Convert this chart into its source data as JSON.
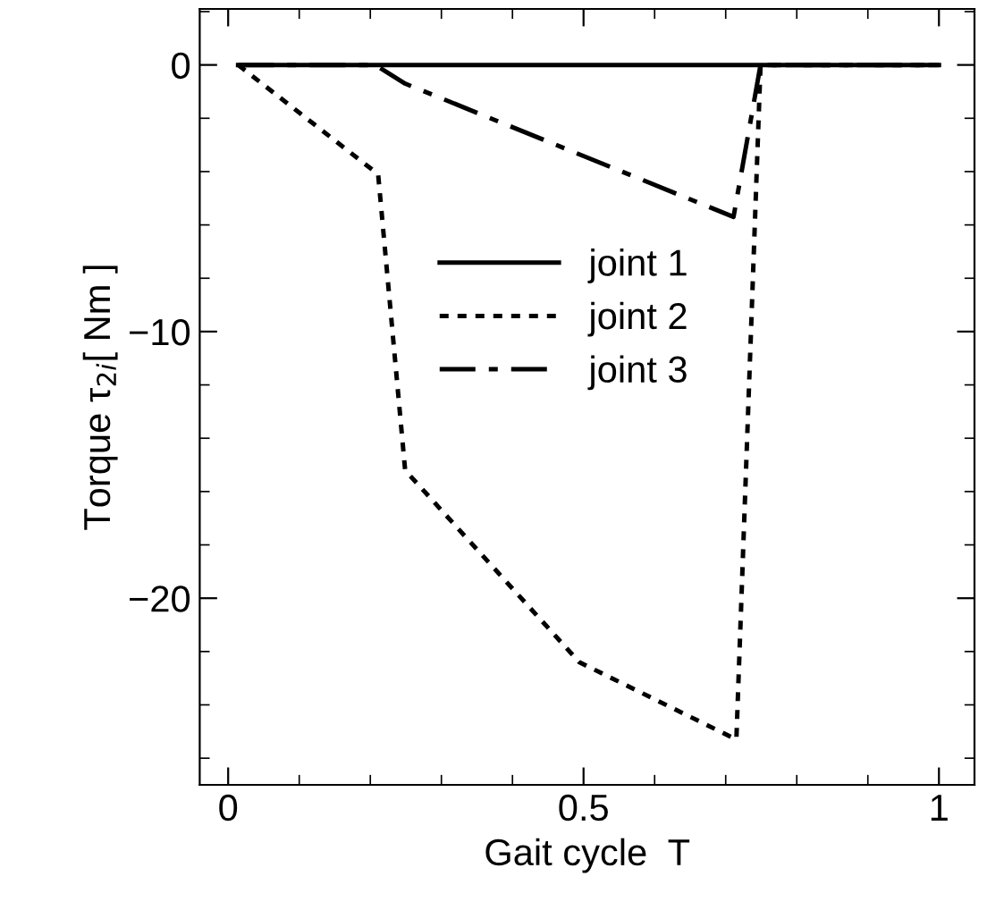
{
  "chart_data": {
    "type": "line",
    "xlabel": "Gait cycle  T",
    "ylabel": "Torque τ$_{2i}$[ Nm ]",
    "series": [
      {
        "name": "joint 1",
        "color": "#000000",
        "line_style": "solid",
        "x": [
          0.014,
          1.0
        ],
        "values": [
          0,
          0
        ]
      },
      {
        "name": "joint 2",
        "color": "#000000",
        "line_style": "dotted",
        "x": [
          0.014,
          0.211,
          0.249,
          0.494,
          0.715,
          0.749,
          1.0
        ],
        "values": [
          0,
          -4.1,
          -15.2,
          -22.4,
          -25.3,
          0,
          0
        ]
      },
      {
        "name": "joint 3",
        "color": "#000000",
        "line_style": "dashdot",
        "x": [
          0.014,
          0.207,
          0.249,
          0.711,
          0.749,
          1.0
        ],
        "values": [
          0,
          0,
          -0.7,
          -5.7,
          0,
          0
        ]
      }
    ],
    "xlim": [
      -0.04,
      1.05
    ],
    "ylim": [
      -27.0,
      2.1
    ],
    "xticks": [
      0,
      0.5,
      1
    ],
    "yticks": [
      0,
      {
        "value": -10,
        "label": "−10"
      },
      {
        "value": -20,
        "label": "−20"
      }
    ],
    "grid": false,
    "legend": "center",
    "marker": "none"
  }
}
